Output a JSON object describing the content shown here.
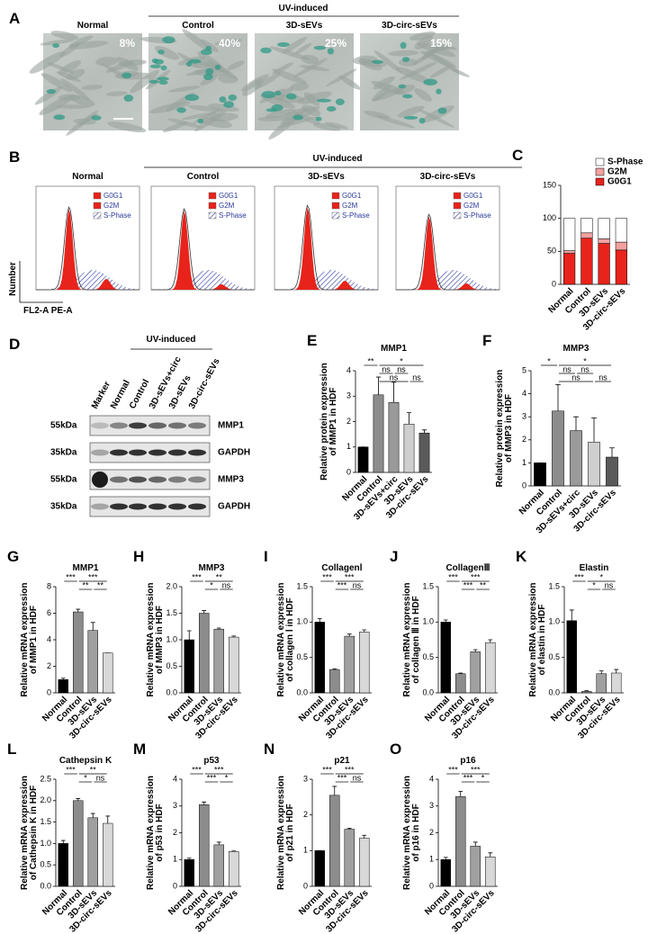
{
  "panels": {
    "A": {
      "label": "A",
      "group": "UV-induced",
      "titles": [
        "Normal",
        "Control",
        "3D-sEVs",
        "3D-circ-sEVs"
      ],
      "percents": [
        "8%",
        "40%",
        "25%",
        "15%"
      ]
    },
    "B": {
      "label": "B",
      "group": "UV-induced",
      "titles": [
        "Normal",
        "Control",
        "3D-sEVs",
        "3D-circ-sEVs"
      ],
      "legend": [
        "G0G1",
        "G2M",
        "S-Phase"
      ],
      "y_axis": "Number",
      "x_axis": "FL2-A PE-A"
    },
    "D": {
      "label": "D",
      "group": "UV-induced",
      "lanes": [
        "Marker",
        "Normal",
        "Control",
        "3D-sEVs+circ",
        "3D-sEVs",
        "3D-circ-sEVs"
      ],
      "rows": [
        {
          "size": "55kDa",
          "protein": "MMP1"
        },
        {
          "size": "35kDa",
          "protein": "GAPDH"
        },
        {
          "size": "55kDa",
          "protein": "MMP3"
        },
        {
          "size": "35kDa",
          "protein": "GAPDH"
        }
      ]
    }
  },
  "chart_data": [
    {
      "type": "stacked_bar",
      "panel": "C",
      "categories": [
        "Normal",
        "Control",
        "3D-sEVs",
        "3D-circ-sEVs"
      ],
      "series": [
        {
          "name": "G0G1",
          "color": "#e8231b",
          "values": [
            47,
            70,
            62,
            52
          ]
        },
        {
          "name": "G2M",
          "color": "#f3a0a0",
          "values": [
            4,
            8,
            7,
            12
          ]
        },
        {
          "name": "S-Phase",
          "color": "#ffffff",
          "values": [
            49,
            22,
            31,
            36
          ]
        }
      ],
      "ylim": [
        0,
        150
      ],
      "yticks": [
        0,
        50,
        100,
        150
      ]
    },
    {
      "type": "bar",
      "panel": "E",
      "title": "MMP1",
      "ylabel": [
        "Relative protein expression",
        "of MMP1 in HDF"
      ],
      "categories": [
        "Normal",
        "Control",
        "3D-sEVs+circ",
        "3D-sEVs",
        "3D-circ-sEVs"
      ],
      "values": [
        1,
        3.05,
        2.75,
        1.9,
        1.55
      ],
      "errors": [
        0,
        0.7,
        0.8,
        0.45,
        0.12
      ],
      "colors": [
        "#000000",
        "#8c8c8c",
        "#9a9a9a",
        "#cfcfcf",
        "#5a5a5a"
      ],
      "ylim": [
        0,
        4
      ],
      "yticks": [
        0,
        1,
        2,
        3,
        4
      ],
      "annotations": [
        "**",
        "*",
        "ns",
        "ns",
        "ns",
        "ns"
      ]
    },
    {
      "type": "bar",
      "panel": "F",
      "title": "MMP3",
      "ylabel": [
        "Relative protein expression",
        "of MMP3 in HDF"
      ],
      "categories": [
        "Normal",
        "Control",
        "3D-sEVs+circ",
        "3D-sEVs",
        "3D-circ-sEVs"
      ],
      "values": [
        1,
        3.25,
        2.4,
        1.9,
        1.25
      ],
      "errors": [
        0,
        1.15,
        0.6,
        1.05,
        0.4
      ],
      "colors": [
        "#000000",
        "#8c8c8c",
        "#9a9a9a",
        "#cfcfcf",
        "#5a5a5a"
      ],
      "ylim": [
        0,
        5
      ],
      "yticks": [
        0,
        1,
        2,
        3,
        4,
        5
      ],
      "annotations": [
        "*",
        "*",
        "ns",
        "ns",
        "ns",
        "ns"
      ]
    },
    {
      "type": "bar",
      "panel": "G",
      "title": "MMP1",
      "ylabel": [
        "Relative mRNA expression",
        "of MMP1 in HDF"
      ],
      "categories": [
        "Normal",
        "Control",
        "3D-sEVs",
        "3D-circ-sEVs"
      ],
      "values": [
        1,
        6.1,
        4.7,
        3.0
      ],
      "errors": [
        0.1,
        0.2,
        0.6,
        0
      ],
      "colors": [
        "#000000",
        "#8c8c8c",
        "#a0a0a0",
        "#d8d8d8"
      ],
      "ylim": [
        0,
        8
      ],
      "yticks": [
        0,
        2,
        4,
        6,
        8
      ],
      "annotations": [
        "***",
        "***",
        "**",
        "**"
      ]
    },
    {
      "type": "bar",
      "panel": "H",
      "title": "MMP3",
      "ylabel": [
        "Relative mRNA expression",
        "of MMP3 in HDF"
      ],
      "categories": [
        "Normal",
        "Control",
        "3D-sEVs",
        "3D-circ-sEVs"
      ],
      "values": [
        1.0,
        1.5,
        1.2,
        1.05
      ],
      "errors": [
        0.17,
        0.05,
        0.02,
        0.02
      ],
      "colors": [
        "#000000",
        "#8c8c8c",
        "#a0a0a0",
        "#d8d8d8"
      ],
      "ylim": [
        0,
        2
      ],
      "yticks": [
        {
          "value": 0,
          "label": "0.0"
        },
        {
          "value": 0.5,
          "label": "0.5"
        },
        {
          "value": 1,
          "label": "1.0"
        },
        {
          "value": 1.5,
          "label": "1.5"
        },
        {
          "value": 2,
          "label": "2.0"
        }
      ],
      "annotations": [
        "***",
        "**",
        "*",
        "ns"
      ]
    },
    {
      "type": "bar",
      "panel": "I",
      "title": "CollagenⅠ",
      "ylabel": [
        "Relative mRNA expression",
        "of collagen Ⅰ in HDF"
      ],
      "categories": [
        "Normal",
        "Control",
        "3D-sEVs",
        "3D-circ-sEVs"
      ],
      "values": [
        1.0,
        0.33,
        0.8,
        0.86
      ],
      "errors": [
        0.05,
        0.01,
        0.03,
        0.03
      ],
      "colors": [
        "#000000",
        "#8c8c8c",
        "#a0a0a0",
        "#d8d8d8"
      ],
      "ylim": [
        0,
        1.5
      ],
      "yticks": [
        {
          "value": 0,
          "label": "0.0"
        },
        {
          "value": 0.5,
          "label": "0.5"
        },
        {
          "value": 1,
          "label": "1.0"
        },
        {
          "value": 1.5,
          "label": "1.5"
        }
      ],
      "annotations": [
        "***",
        "***",
        "***",
        "ns"
      ]
    },
    {
      "type": "bar",
      "panel": "J",
      "title": "CollagenⅢ",
      "ylabel": [
        "Relative mRNA expression",
        "of collagen Ⅲ in HDF"
      ],
      "categories": [
        "Normal",
        "Control",
        "3D-sEVs",
        "3D-circ-sEVs"
      ],
      "values": [
        1.0,
        0.27,
        0.58,
        0.71
      ],
      "errors": [
        0.03,
        0.01,
        0.03,
        0.04
      ],
      "colors": [
        "#000000",
        "#8c8c8c",
        "#a0a0a0",
        "#d8d8d8"
      ],
      "ylim": [
        0,
        1.5
      ],
      "yticks": [
        {
          "value": 0,
          "label": "0.0"
        },
        {
          "value": 0.5,
          "label": "0.5"
        },
        {
          "value": 1,
          "label": "1.0"
        },
        {
          "value": 1.5,
          "label": "1.5"
        }
      ],
      "annotations": [
        "***",
        "***",
        "***",
        "**"
      ]
    },
    {
      "type": "bar",
      "panel": "K",
      "title": "Elastin",
      "ylabel": [
        "Relative mRNA expression",
        "of elastin in HDF"
      ],
      "categories": [
        "Normal",
        "Control",
        "3D-sEVs",
        "3D-circ-sEVs"
      ],
      "values": [
        1.02,
        0.02,
        0.27,
        0.28
      ],
      "errors": [
        0.15,
        0.01,
        0.04,
        0.05
      ],
      "colors": [
        "#000000",
        "#8c8c8c",
        "#a0a0a0",
        "#d8d8d8"
      ],
      "ylim": [
        0,
        1.5
      ],
      "yticks": [
        {
          "value": 0,
          "label": "0.0"
        },
        {
          "value": 0.5,
          "label": "0.5"
        },
        {
          "value": 1,
          "label": "1.0"
        },
        {
          "value": 1.5,
          "label": "1.5"
        }
      ],
      "annotations": [
        "***",
        "*",
        "*",
        "ns"
      ]
    },
    {
      "type": "bar",
      "panel": "L",
      "title": "Cathepsin K",
      "ylabel": [
        "Relative mRNA expression",
        "of Cathepsin K in HDF"
      ],
      "categories": [
        "Normal",
        "Control",
        "3D-sEVs",
        "3D-circ-sEVs"
      ],
      "values": [
        1.0,
        2.0,
        1.6,
        1.47
      ],
      "errors": [
        0.07,
        0.05,
        0.1,
        0.17
      ],
      "colors": [
        "#000000",
        "#8c8c8c",
        "#a0a0a0",
        "#d8d8d8"
      ],
      "ylim": [
        0,
        2.5
      ],
      "yticks": [
        {
          "value": 0,
          "label": "0.0"
        },
        {
          "value": 0.5,
          "label": "0.5"
        },
        {
          "value": 1,
          "label": "1.0"
        },
        {
          "value": 1.5,
          "label": "1.5"
        },
        {
          "value": 2,
          "label": "2.0"
        },
        {
          "value": 2.5,
          "label": "2.5"
        }
      ],
      "annotations": [
        "***",
        "**",
        "*",
        "ns"
      ]
    },
    {
      "type": "bar",
      "panel": "M",
      "title": "p53",
      "ylabel": [
        "Relative mRNA expression",
        "of p53 in HDF"
      ],
      "categories": [
        "Normal",
        "Control",
        "3D-sEVs",
        "3D-circ-sEVs"
      ],
      "values": [
        1.0,
        3.05,
        1.55,
        1.3
      ],
      "errors": [
        0.05,
        0.1,
        0.1,
        0.02
      ],
      "colors": [
        "#000000",
        "#8c8c8c",
        "#a0a0a0",
        "#d8d8d8"
      ],
      "ylim": [
        0,
        4
      ],
      "yticks": [
        0,
        1,
        2,
        3,
        4
      ],
      "annotations": [
        "***",
        "***",
        "***",
        "*"
      ]
    },
    {
      "type": "bar",
      "panel": "N",
      "title": "p21",
      "ylabel": [
        "Relative mRNA expression",
        "of p21 in HDF"
      ],
      "categories": [
        "Normal",
        "Control",
        "3D-sEVs",
        "3D-circ-sEVs"
      ],
      "values": [
        1.0,
        2.55,
        1.6,
        1.35
      ],
      "errors": [
        0,
        0.25,
        0.03,
        0.08
      ],
      "colors": [
        "#000000",
        "#8c8c8c",
        "#a0a0a0",
        "#d8d8d8"
      ],
      "ylim": [
        0,
        3
      ],
      "yticks": [
        0,
        1,
        2,
        3
      ],
      "annotations": [
        "***",
        "***",
        "***",
        "ns"
      ]
    },
    {
      "type": "bar",
      "panel": "O",
      "title": "p16",
      "ylabel": [
        "Relative mRNA expression",
        "of p16 in HDF"
      ],
      "categories": [
        "Normal",
        "Control",
        "3D-sEVs",
        "3D-circ-sEVs"
      ],
      "values": [
        1.0,
        3.35,
        1.5,
        1.1
      ],
      "errors": [
        0.08,
        0.2,
        0.15,
        0.15
      ],
      "colors": [
        "#000000",
        "#8c8c8c",
        "#a0a0a0",
        "#d8d8d8"
      ],
      "ylim": [
        0,
        4
      ],
      "yticks": [
        0,
        1,
        2,
        3,
        4
      ],
      "annotations": [
        "***",
        "***",
        "***",
        "*"
      ]
    }
  ]
}
